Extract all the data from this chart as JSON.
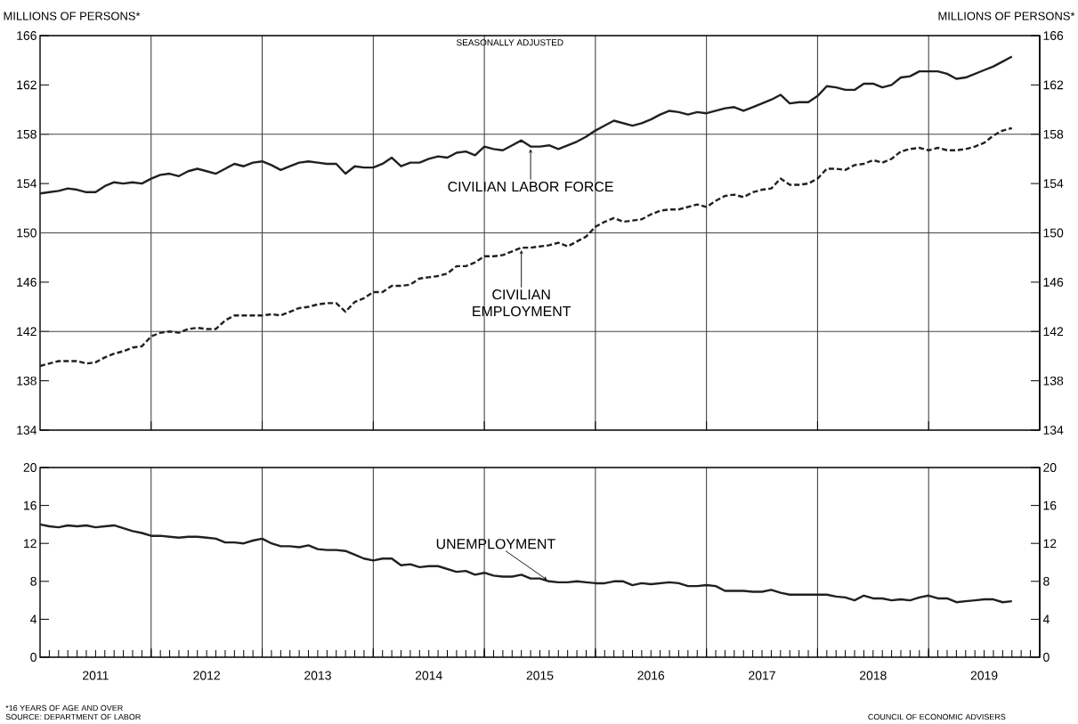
{
  "chart_data": [
    {
      "type": "line",
      "title": "SEASONALLY ADJUSTED",
      "ylabel": "MILLIONS OF PERSONS*",
      "y2label": "MILLIONS OF PERSONS*",
      "x": [
        "2011-01",
        "2011-02",
        "2011-03",
        "2011-04",
        "2011-05",
        "2011-06",
        "2011-07",
        "2011-08",
        "2011-09",
        "2011-10",
        "2011-11",
        "2011-12",
        "2012-01",
        "2012-02",
        "2012-03",
        "2012-04",
        "2012-05",
        "2012-06",
        "2012-07",
        "2012-08",
        "2012-09",
        "2012-10",
        "2012-11",
        "2012-12",
        "2013-01",
        "2013-02",
        "2013-03",
        "2013-04",
        "2013-05",
        "2013-06",
        "2013-07",
        "2013-08",
        "2013-09",
        "2013-10",
        "2013-11",
        "2013-12",
        "2014-01",
        "2014-02",
        "2014-03",
        "2014-04",
        "2014-05",
        "2014-06",
        "2014-07",
        "2014-08",
        "2014-09",
        "2014-10",
        "2014-11",
        "2014-12",
        "2015-01",
        "2015-02",
        "2015-03",
        "2015-04",
        "2015-05",
        "2015-06",
        "2015-07",
        "2015-08",
        "2015-09",
        "2015-10",
        "2015-11",
        "2015-12",
        "2016-01",
        "2016-02",
        "2016-03",
        "2016-04",
        "2016-05",
        "2016-06",
        "2016-07",
        "2016-08",
        "2016-09",
        "2016-10",
        "2016-11",
        "2016-12",
        "2017-01",
        "2017-02",
        "2017-03",
        "2017-04",
        "2017-05",
        "2017-06",
        "2017-07",
        "2017-08",
        "2017-09",
        "2017-10",
        "2017-11",
        "2017-12",
        "2018-01",
        "2018-02",
        "2018-03",
        "2018-04",
        "2018-05",
        "2018-06",
        "2018-07",
        "2018-08",
        "2018-09",
        "2018-10",
        "2018-11",
        "2018-12",
        "2019-01",
        "2019-02",
        "2019-03",
        "2019-04",
        "2019-05",
        "2019-06",
        "2019-07",
        "2019-08",
        "2019-09",
        "2019-10"
      ],
      "xlim": [
        "2011-01-01",
        "2020-01-01"
      ],
      "xticks": [
        {
          "value": "2012-01-01",
          "label": null
        },
        {
          "value": "2013-01-01",
          "label": null
        },
        {
          "value": "2014-01-01",
          "label": null
        },
        {
          "value": "2015-01-01",
          "label": null
        },
        {
          "value": "2016-01-01",
          "label": null
        },
        {
          "value": "2017-01-01",
          "label": null
        },
        {
          "value": "2018-01-01",
          "label": null
        },
        {
          "value": "2019-01-01",
          "label": null
        }
      ],
      "ylim": [
        134,
        166
      ],
      "yticks": [
        134,
        138,
        142,
        146,
        150,
        154,
        158,
        162,
        166
      ],
      "y2lim": [
        134,
        166
      ],
      "y2ticks": [
        134,
        138,
        142,
        146,
        150,
        154,
        158,
        162,
        166
      ],
      "tick_labels": "y",
      "grid": "x",
      "ref_lines": [
        {
          "axis": "y",
          "value": 142,
          "color": "#444444"
        },
        {
          "axis": "y",
          "value": 150,
          "color": "#444444"
        },
        {
          "axis": "y",
          "value": 158,
          "color": "#444444"
        }
      ],
      "series": [
        {
          "name": "CIVILIAN LABOR FORCE",
          "color": "#231f20",
          "line_style": "solid",
          "values": [
            153.2,
            153.3,
            153.4,
            153.6,
            153.5,
            153.3,
            153.3,
            153.8,
            154.1,
            154.0,
            154.1,
            154.0,
            154.4,
            154.7,
            154.8,
            154.6,
            155.0,
            155.2,
            155.0,
            154.8,
            155.2,
            155.6,
            155.4,
            155.7,
            155.8,
            155.5,
            155.1,
            155.4,
            155.7,
            155.8,
            155.7,
            155.6,
            155.6,
            154.8,
            155.4,
            155.3,
            155.3,
            155.6,
            156.1,
            155.4,
            155.7,
            155.7,
            156.0,
            156.2,
            156.1,
            156.5,
            156.6,
            156.3,
            157.0,
            156.8,
            156.7,
            157.1,
            157.5,
            157.0,
            157.0,
            157.1,
            156.8,
            157.1,
            157.4,
            157.8,
            158.3,
            158.7,
            159.1,
            158.9,
            158.7,
            158.9,
            159.2,
            159.6,
            159.9,
            159.8,
            159.6,
            159.8,
            159.7,
            159.9,
            160.1,
            160.2,
            159.9,
            160.2,
            160.5,
            160.8,
            161.2,
            160.5,
            160.6,
            160.6,
            161.1,
            161.9,
            161.8,
            161.6,
            161.6,
            162.1,
            162.1,
            161.8,
            162.0,
            162.6,
            162.7,
            163.1,
            163.1,
            163.1,
            162.9,
            162.5,
            162.6,
            162.9,
            163.2,
            163.5,
            163.9,
            164.3
          ]
        },
        {
          "name": "CIVILIAN EMPLOYMENT",
          "color": "#231f20",
          "line_style": "dashed",
          "values": [
            139.2,
            139.4,
            139.6,
            139.6,
            139.6,
            139.4,
            139.5,
            139.9,
            140.2,
            140.4,
            140.7,
            140.8,
            141.6,
            141.9,
            142.0,
            141.9,
            142.2,
            142.3,
            142.2,
            142.2,
            142.9,
            143.3,
            143.3,
            143.3,
            143.3,
            143.4,
            143.3,
            143.6,
            143.9,
            144.0,
            144.2,
            144.3,
            144.3,
            143.6,
            144.4,
            144.7,
            145.2,
            145.2,
            145.7,
            145.7,
            145.8,
            146.3,
            146.4,
            146.5,
            146.7,
            147.3,
            147.3,
            147.6,
            148.1,
            148.1,
            148.2,
            148.5,
            148.8,
            148.8,
            148.9,
            149.0,
            149.2,
            148.9,
            149.3,
            149.7,
            150.5,
            150.9,
            151.2,
            150.9,
            151.0,
            151.1,
            151.5,
            151.8,
            151.9,
            151.9,
            152.1,
            152.3,
            152.1,
            152.6,
            153.0,
            153.1,
            152.9,
            153.3,
            153.5,
            153.6,
            154.4,
            153.9,
            153.9,
            154.0,
            154.4,
            155.2,
            155.2,
            155.1,
            155.5,
            155.6,
            155.9,
            155.7,
            156.0,
            156.6,
            156.8,
            156.9,
            156.7,
            156.9,
            156.7,
            156.7,
            156.8,
            157.0,
            157.3,
            157.9,
            158.3,
            158.5
          ]
        }
      ]
    },
    {
      "type": "line",
      "x": [
        "2011-01",
        "2011-02",
        "2011-03",
        "2011-04",
        "2011-05",
        "2011-06",
        "2011-07",
        "2011-08",
        "2011-09",
        "2011-10",
        "2011-11",
        "2011-12",
        "2012-01",
        "2012-02",
        "2012-03",
        "2012-04",
        "2012-05",
        "2012-06",
        "2012-07",
        "2012-08",
        "2012-09",
        "2012-10",
        "2012-11",
        "2012-12",
        "2013-01",
        "2013-02",
        "2013-03",
        "2013-04",
        "2013-05",
        "2013-06",
        "2013-07",
        "2013-08",
        "2013-09",
        "2013-10",
        "2013-11",
        "2013-12",
        "2014-01",
        "2014-02",
        "2014-03",
        "2014-04",
        "2014-05",
        "2014-06",
        "2014-07",
        "2014-08",
        "2014-09",
        "2014-10",
        "2014-11",
        "2014-12",
        "2015-01",
        "2015-02",
        "2015-03",
        "2015-04",
        "2015-05",
        "2015-06",
        "2015-07",
        "2015-08",
        "2015-09",
        "2015-10",
        "2015-11",
        "2015-12",
        "2016-01",
        "2016-02",
        "2016-03",
        "2016-04",
        "2016-05",
        "2016-06",
        "2016-07",
        "2016-08",
        "2016-09",
        "2016-10",
        "2016-11",
        "2016-12",
        "2017-01",
        "2017-02",
        "2017-03",
        "2017-04",
        "2017-05",
        "2017-06",
        "2017-07",
        "2017-08",
        "2017-09",
        "2017-10",
        "2017-11",
        "2017-12",
        "2018-01",
        "2018-02",
        "2018-03",
        "2018-04",
        "2018-05",
        "2018-06",
        "2018-07",
        "2018-08",
        "2018-09",
        "2018-10",
        "2018-11",
        "2018-12",
        "2019-01",
        "2019-02",
        "2019-03",
        "2019-04",
        "2019-05",
        "2019-06",
        "2019-07",
        "2019-08",
        "2019-09",
        "2019-10"
      ],
      "xlim": [
        "2011-01-01",
        "2020-01-01"
      ],
      "xticks": [
        {
          "value": "2012-01-01",
          "label": null
        },
        {
          "value": "2013-01-01",
          "label": null
        },
        {
          "value": "2014-01-01",
          "label": null
        },
        {
          "value": "2015-01-01",
          "label": null
        },
        {
          "value": "2016-01-01",
          "label": null
        },
        {
          "value": "2017-01-01",
          "label": null
        },
        {
          "value": "2018-01-01",
          "label": null
        },
        {
          "value": "2019-01-01",
          "label": null
        },
        {
          "value": "2011-07-01",
          "label": "2011"
        },
        {
          "value": "2012-07-01",
          "label": "2012"
        },
        {
          "value": "2013-07-01",
          "label": "2013"
        },
        {
          "value": "2014-07-01",
          "label": "2014"
        },
        {
          "value": "2015-07-01",
          "label": "2015"
        },
        {
          "value": "2016-07-01",
          "label": "2016"
        },
        {
          "value": "2017-07-01",
          "label": "2017"
        },
        {
          "value": "2018-07-01",
          "label": "2018"
        },
        {
          "value": "2019-07-01",
          "label": "2019"
        }
      ],
      "ylim": [
        0,
        20
      ],
      "yticks": [
        0,
        4,
        8,
        12,
        16,
        20
      ],
      "y2lim": [
        0,
        20
      ],
      "y2ticks": [
        0,
        4,
        8,
        12,
        16,
        20
      ],
      "grid": "x",
      "annotations": [
        "*16 YEARS OF AGE AND OVER",
        "SOURCE: DEPARTMENT OF LABOR",
        "COUNCIL OF ECONOMIC ADVISERS"
      ],
      "series": [
        {
          "name": "UNEMPLOYMENT",
          "color": "#231f20",
          "line_style": "solid",
          "values": [
            14.0,
            13.8,
            13.7,
            13.9,
            13.8,
            13.9,
            13.7,
            13.8,
            13.9,
            13.6,
            13.3,
            13.1,
            12.8,
            12.8,
            12.7,
            12.6,
            12.7,
            12.7,
            12.6,
            12.5,
            12.1,
            12.1,
            12.0,
            12.3,
            12.5,
            12.0,
            11.7,
            11.7,
            11.6,
            11.8,
            11.4,
            11.3,
            11.3,
            11.2,
            10.8,
            10.4,
            10.2,
            10.4,
            10.4,
            9.7,
            9.8,
            9.5,
            9.6,
            9.6,
            9.3,
            9.0,
            9.1,
            8.7,
            8.9,
            8.6,
            8.5,
            8.5,
            8.7,
            8.3,
            8.3,
            8.0,
            7.9,
            7.9,
            8.0,
            7.9,
            7.8,
            7.8,
            8.0,
            8.0,
            7.6,
            7.8,
            7.7,
            7.8,
            7.9,
            7.8,
            7.5,
            7.5,
            7.6,
            7.5,
            7.0,
            7.0,
            7.0,
            6.9,
            6.9,
            7.1,
            6.8,
            6.6,
            6.6,
            6.6,
            6.6,
            6.6,
            6.4,
            6.3,
            6.0,
            6.5,
            6.2,
            6.2,
            6.0,
            6.1,
            6.0,
            6.3,
            6.5,
            6.2,
            6.2,
            5.8,
            5.9,
            6.0,
            6.1,
            6.1,
            5.8,
            5.9
          ]
        }
      ]
    }
  ]
}
